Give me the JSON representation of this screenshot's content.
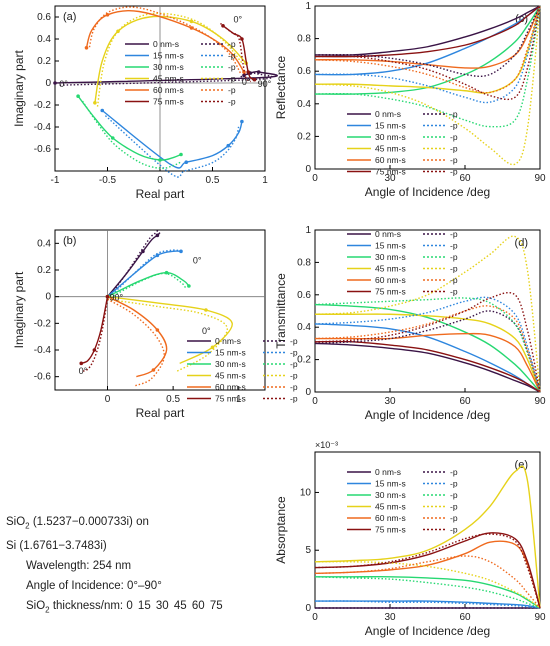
{
  "info": {
    "oxide": "SiO",
    "oxide_sub": "2",
    "oxide_index": " (1.5237−0.000733i) on",
    "substrate": "Si (1.6761−3.7483i)",
    "wavelength": "Wavelength: 254 nm",
    "aoi_range": "Angle of Incidence: 0°–90°",
    "thick_prefix": "SiO",
    "thick_sub": "2",
    "thick_label": " thickness/nm:",
    "thick_values": "0  15  30  45  60  75"
  },
  "legend_s": [
    "0 nm-s",
    "15 nm-s",
    "30 nm-s",
    "45 nm-s",
    "60 nm-s",
    "75 nm-s"
  ],
  "legend_p": [
    "-p",
    "-p",
    "-p",
    "-p",
    "-p",
    "-p"
  ],
  "colors": [
    "#3a1446",
    "#2e86de",
    "#27d872",
    "#e6d21a",
    "#ef6a1e",
    "#8a1212"
  ],
  "chart_data": [
    {
      "panel": "(a)",
      "type": "line",
      "xlabel": "Real part",
      "ylabel": "Imaginary part",
      "xlim": [
        -1,
        1
      ],
      "ylim": [
        -0.8,
        0.7
      ],
      "xticks": [
        "-1",
        "-0.5",
        "0",
        "0.5",
        "1"
      ],
      "yticks": [
        "-0.6",
        "-0.4",
        "-0.2",
        "0",
        "0.2",
        "0.4",
        "0.6"
      ],
      "annotations": [
        "0°",
        "90°",
        "0°",
        "0°"
      ],
      "series": [
        {
          "name": "0 nm-s",
          "x": [
            0.8,
            0.83,
            0.86,
            0.9,
            0.94,
            0.98,
            -1.0
          ],
          "y": [
            0.07,
            0.08,
            0.09,
            0.1,
            0.1,
            0.05,
            0.0
          ]
        },
        {
          "name": "15 nm-s",
          "x": [
            0.78,
            0.75,
            0.65,
            0.5,
            0.25,
            0.1,
            -0.55
          ],
          "y": [
            -0.35,
            -0.45,
            -0.57,
            -0.66,
            -0.72,
            -0.74,
            -0.25
          ]
        },
        {
          "name": "30 nm-s",
          "x": [
            0.2,
            0.12,
            0.0,
            -0.2,
            -0.45,
            -0.62,
            -0.78
          ],
          "y": [
            -0.65,
            -0.68,
            -0.7,
            -0.65,
            -0.5,
            -0.32,
            -0.12
          ]
        },
        {
          "name": "45 nm-s",
          "x": [
            -0.62,
            -0.55,
            -0.4,
            -0.1,
            0.3,
            0.6,
            0.82
          ],
          "y": [
            -0.18,
            0.2,
            0.47,
            0.6,
            0.56,
            0.4,
            0.18
          ]
        },
        {
          "name": "60 nm-s",
          "x": [
            -0.7,
            -0.65,
            -0.5,
            -0.2,
            0.3,
            0.65,
            0.8
          ],
          "y": [
            0.32,
            0.48,
            0.62,
            0.65,
            0.5,
            0.3,
            0.1
          ]
        },
        {
          "name": "75 nm-s",
          "x": [
            0.6,
            0.7,
            0.78,
            0.82,
            0.84,
            0.86,
            0.9
          ],
          "y": [
            0.52,
            0.45,
            0.4,
            0.2,
            0.1,
            0.05,
            0.03
          ]
        }
      ]
    },
    {
      "panel": "(b)",
      "type": "line",
      "xlabel": "Real part",
      "ylabel": "Imaginary part",
      "xlim": [
        -0.4,
        1.2
      ],
      "ylim": [
        -0.7,
        0.5
      ],
      "xticks": [
        "0",
        "0.5",
        "1"
      ],
      "yticks": [
        "-0.6",
        "-0.4",
        "-0.2",
        "0",
        "0.2",
        "0.4"
      ],
      "annotations": [
        "90°",
        "0°",
        "0°",
        "0°"
      ],
      "series": [
        {
          "name": "0 nm-s",
          "x": [
            0.0,
            0.15,
            0.27,
            0.34,
            0.38,
            0.4
          ],
          "y": [
            0.0,
            0.18,
            0.34,
            0.43,
            0.46,
            0.48
          ]
        },
        {
          "name": "15 nm-s",
          "x": [
            0.0,
            0.2,
            0.38,
            0.5,
            0.56
          ],
          "y": [
            0.0,
            0.17,
            0.31,
            0.34,
            0.34
          ]
        },
        {
          "name": "30 nm-s",
          "x": [
            0.0,
            0.25,
            0.45,
            0.58,
            0.62
          ],
          "y": [
            0.0,
            0.12,
            0.18,
            0.12,
            0.08
          ]
        },
        {
          "name": "45 nm-s",
          "x": [
            0.0,
            0.4,
            0.75,
            0.95,
            0.8,
            0.55
          ],
          "y": [
            0.0,
            -0.05,
            -0.1,
            -0.2,
            -0.38,
            -0.5
          ]
        },
        {
          "name": "60 nm-s",
          "x": [
            0.0,
            0.2,
            0.38,
            0.45,
            0.35,
            0.22
          ],
          "y": [
            0.0,
            -0.1,
            -0.25,
            -0.4,
            -0.55,
            -0.6
          ]
        },
        {
          "name": "75 nm-s",
          "x": [
            0.0,
            -0.05,
            -0.1,
            -0.15,
            -0.2
          ],
          "y": [
            0.0,
            -0.25,
            -0.4,
            -0.48,
            -0.5
          ]
        }
      ]
    },
    {
      "panel": "(c)",
      "type": "line",
      "xlabel": "Angle of Incidence /deg",
      "ylabel": "Reflectance",
      "xlim": [
        0,
        90
      ],
      "ylim": [
        0,
        1
      ],
      "xticks": [
        "0",
        "30",
        "60",
        "90"
      ],
      "yticks": [
        "0",
        "0.2",
        "0.4",
        "0.6",
        "0.8",
        "1"
      ],
      "x": [
        0,
        15,
        30,
        45,
        60,
        70,
        80,
        85,
        90
      ],
      "series": [
        {
          "name": "0 nm-s",
          "values": [
            0.7,
            0.7,
            0.72,
            0.75,
            0.81,
            0.86,
            0.92,
            0.96,
            1.0
          ]
        },
        {
          "name": "15 nm-s",
          "values": [
            0.58,
            0.58,
            0.6,
            0.65,
            0.74,
            0.81,
            0.89,
            0.94,
            1.0
          ]
        },
        {
          "name": "30 nm-s",
          "values": [
            0.46,
            0.46,
            0.47,
            0.5,
            0.58,
            0.66,
            0.78,
            0.88,
            1.0
          ]
        },
        {
          "name": "45 nm-s",
          "values": [
            0.52,
            0.52,
            0.51,
            0.5,
            0.48,
            0.47,
            0.55,
            0.72,
            1.0
          ]
        },
        {
          "name": "60 nm-s",
          "values": [
            0.67,
            0.67,
            0.66,
            0.64,
            0.62,
            0.63,
            0.7,
            0.82,
            1.0
          ]
        },
        {
          "name": "75 nm-s",
          "values": [
            0.69,
            0.69,
            0.7,
            0.72,
            0.76,
            0.81,
            0.88,
            0.94,
            1.0
          ]
        },
        {
          "name": "0 nm-p",
          "values": [
            0.7,
            0.7,
            0.68,
            0.64,
            0.58,
            0.58,
            0.7,
            0.84,
            1.0
          ]
        },
        {
          "name": "15 nm-p",
          "values": [
            0.58,
            0.58,
            0.56,
            0.51,
            0.44,
            0.41,
            0.5,
            0.7,
            1.0
          ]
        },
        {
          "name": "30 nm-p",
          "values": [
            0.46,
            0.46,
            0.43,
            0.38,
            0.3,
            0.26,
            0.3,
            0.55,
            1.0
          ]
        },
        {
          "name": "45 nm-p",
          "values": [
            0.52,
            0.51,
            0.47,
            0.39,
            0.25,
            0.13,
            0.03,
            0.25,
            1.0
          ]
        },
        {
          "name": "60 nm-p",
          "values": [
            0.67,
            0.66,
            0.63,
            0.58,
            0.5,
            0.47,
            0.55,
            0.74,
            1.0
          ]
        },
        {
          "name": "75 nm-p",
          "values": [
            0.69,
            0.69,
            0.66,
            0.61,
            0.52,
            0.45,
            0.44,
            0.62,
            1.0
          ]
        }
      ]
    },
    {
      "panel": "(d)",
      "type": "line",
      "xlabel": "Angle of Incidence /deg",
      "ylabel": "Transmittance",
      "xlim": [
        0,
        90
      ],
      "ylim": [
        0,
        1
      ],
      "xticks": [
        "0",
        "30",
        "60",
        "90"
      ],
      "yticks": [
        "0",
        "0.2",
        "0.4",
        "0.6",
        "0.8",
        "1"
      ],
      "x": [
        0,
        15,
        30,
        45,
        60,
        70,
        80,
        85,
        90
      ],
      "series": [
        {
          "name": "0 nm-s",
          "values": [
            0.3,
            0.29,
            0.27,
            0.24,
            0.18,
            0.13,
            0.07,
            0.04,
            0.0
          ]
        },
        {
          "name": "15 nm-s",
          "values": [
            0.42,
            0.41,
            0.39,
            0.34,
            0.25,
            0.18,
            0.1,
            0.05,
            0.0
          ]
        },
        {
          "name": "30 nm-s",
          "values": [
            0.54,
            0.53,
            0.51,
            0.46,
            0.37,
            0.29,
            0.17,
            0.09,
            0.0
          ]
        },
        {
          "name": "45 nm-s",
          "values": [
            0.48,
            0.48,
            0.48,
            0.47,
            0.45,
            0.42,
            0.33,
            0.2,
            0.0
          ]
        },
        {
          "name": "60 nm-s",
          "values": [
            0.33,
            0.33,
            0.33,
            0.35,
            0.36,
            0.35,
            0.28,
            0.16,
            0.0
          ]
        },
        {
          "name": "75 nm-s",
          "values": [
            0.31,
            0.31,
            0.29,
            0.26,
            0.2,
            0.15,
            0.09,
            0.05,
            0.0
          ]
        },
        {
          "name": "0 nm-p",
          "values": [
            0.3,
            0.31,
            0.33,
            0.38,
            0.45,
            0.5,
            0.42,
            0.25,
            0.0
          ]
        },
        {
          "name": "15 nm-p",
          "values": [
            0.42,
            0.43,
            0.45,
            0.49,
            0.56,
            0.58,
            0.48,
            0.28,
            0.0
          ]
        },
        {
          "name": "30 nm-p",
          "values": [
            0.54,
            0.55,
            0.56,
            0.57,
            0.58,
            0.55,
            0.42,
            0.24,
            0.0
          ]
        },
        {
          "name": "45 nm-p",
          "values": [
            0.48,
            0.49,
            0.53,
            0.6,
            0.74,
            0.85,
            0.96,
            0.75,
            0.0
          ]
        },
        {
          "name": "60 nm-p",
          "values": [
            0.33,
            0.34,
            0.37,
            0.42,
            0.5,
            0.53,
            0.45,
            0.26,
            0.0
          ]
        },
        {
          "name": "75 nm-p",
          "values": [
            0.31,
            0.32,
            0.35,
            0.41,
            0.5,
            0.58,
            0.6,
            0.38,
            0.0
          ]
        }
      ]
    },
    {
      "panel": "(e)",
      "type": "line",
      "xlabel": "Angle of Incidence /deg",
      "ylabel": "Absorptance",
      "axis_multiplier": "×10⁻³",
      "xlim": [
        0,
        90
      ],
      "ylim": [
        0,
        0.0135
      ],
      "xticks": [
        "0",
        "30",
        "60",
        "90"
      ],
      "yticks": [
        "0",
        "5",
        "10"
      ],
      "x": [
        0,
        15,
        30,
        45,
        60,
        70,
        80,
        85,
        90
      ],
      "series": [
        {
          "name": "0 nm-s",
          "values": [
            0.0,
            0.0,
            0.0,
            0.0,
            0.0,
            0.0,
            0.0,
            0.0,
            0.0
          ]
        },
        {
          "name": "15 nm-s",
          "values": [
            0.0006,
            0.0006,
            0.0006,
            0.0006,
            0.0005,
            0.0004,
            0.0003,
            0.0002,
            0.0
          ]
        },
        {
          "name": "30 nm-s",
          "values": [
            0.0027,
            0.0027,
            0.0027,
            0.0026,
            0.0024,
            0.002,
            0.0013,
            0.0007,
            0.0
          ]
        },
        {
          "name": "45 nm-s",
          "values": [
            0.004,
            0.0041,
            0.0043,
            0.005,
            0.0068,
            0.0088,
            0.0118,
            0.011,
            0.0
          ]
        },
        {
          "name": "60 nm-s",
          "values": [
            0.003,
            0.0031,
            0.0033,
            0.0037,
            0.0047,
            0.0057,
            0.0055,
            0.0038,
            0.0
          ]
        },
        {
          "name": "75 nm-s",
          "values": [
            0.0035,
            0.0036,
            0.0039,
            0.0046,
            0.0058,
            0.0065,
            0.006,
            0.004,
            0.0
          ]
        },
        {
          "name": "0 nm-p",
          "values": [
            0.0,
            0.0,
            0.0,
            0.0,
            0.0,
            0.0,
            0.0,
            0.0,
            0.0
          ]
        },
        {
          "name": "15 nm-p",
          "values": [
            0.0006,
            0.0006,
            0.0005,
            0.0005,
            0.0004,
            0.0003,
            0.0002,
            0.0001,
            0.0
          ]
        },
        {
          "name": "30 nm-p",
          "values": [
            0.0027,
            0.0026,
            0.0025,
            0.0022,
            0.0018,
            0.0014,
            0.0008,
            0.0004,
            0.0
          ]
        },
        {
          "name": "45 nm-p",
          "values": [
            0.004,
            0.004,
            0.0039,
            0.0036,
            0.003,
            0.0024,
            0.0014,
            0.0008,
            0.0
          ]
        },
        {
          "name": "60 nm-p",
          "values": [
            0.003,
            0.0031,
            0.0034,
            0.004,
            0.0045,
            0.004,
            0.0025,
            0.0013,
            0.0
          ]
        },
        {
          "name": "75 nm-p",
          "values": [
            0.0035,
            0.0036,
            0.004,
            0.0048,
            0.006,
            0.0064,
            0.0058,
            0.0035,
            0.0
          ]
        }
      ]
    }
  ]
}
